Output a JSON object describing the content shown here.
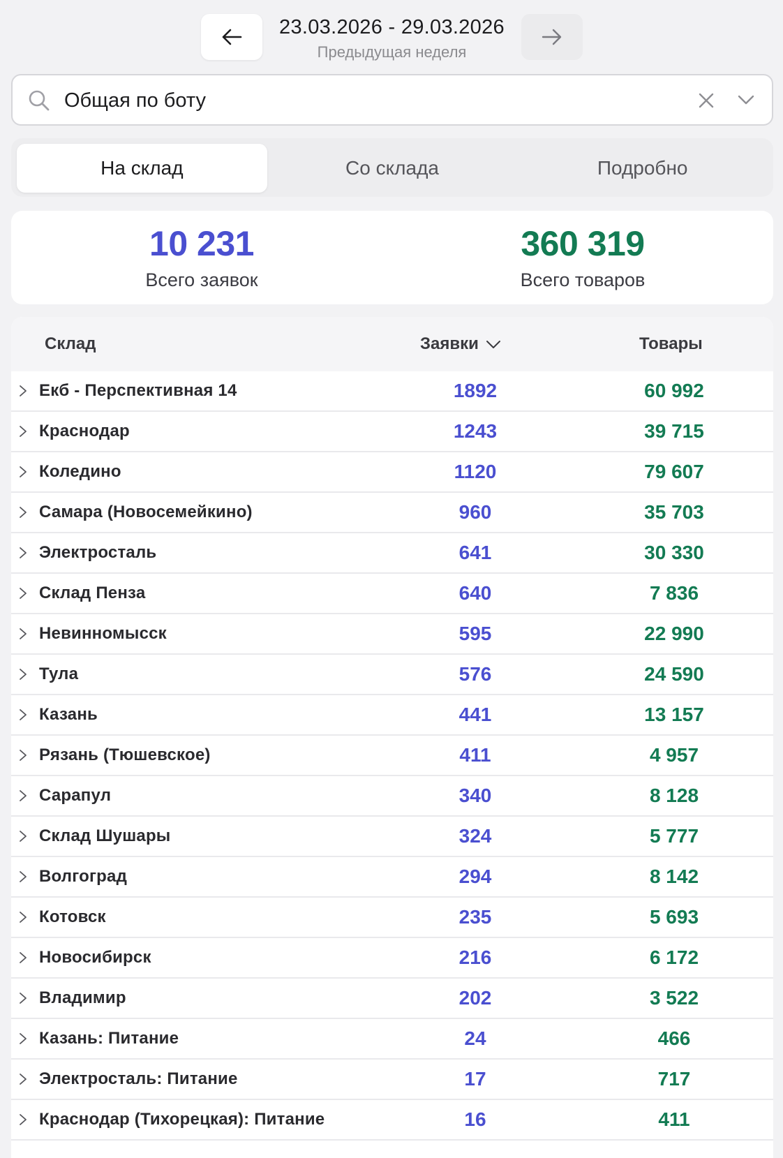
{
  "week": {
    "range": "23.03.2026 - 29.03.2026",
    "subtitle": "Предыдущая неделя"
  },
  "search": {
    "value": "Общая по боту"
  },
  "tabs": [
    {
      "label": "На склад",
      "active": true
    },
    {
      "label": "Со склада",
      "active": false
    },
    {
      "label": "Подробно",
      "active": false
    }
  ],
  "totals": {
    "requests_value": "10 231",
    "requests_label": "Всего заявок",
    "goods_value": "360 319",
    "goods_label": "Всего товаров"
  },
  "table": {
    "headers": {
      "warehouse": "Склад",
      "requests": "Заявки",
      "goods": "Товары"
    },
    "rows": [
      {
        "name": "Екб - Перспективная 14",
        "requests": "1892",
        "goods": "60 992"
      },
      {
        "name": "Краснодар",
        "requests": "1243",
        "goods": "39 715"
      },
      {
        "name": "Коледино",
        "requests": "1120",
        "goods": "79 607"
      },
      {
        "name": "Самара (Новосемейкино)",
        "requests": "960",
        "goods": "35 703"
      },
      {
        "name": "Электросталь",
        "requests": "641",
        "goods": "30 330"
      },
      {
        "name": "Склад Пенза",
        "requests": "640",
        "goods": "7 836"
      },
      {
        "name": "Невинномысск",
        "requests": "595",
        "goods": "22 990"
      },
      {
        "name": "Тула",
        "requests": "576",
        "goods": "24 590"
      },
      {
        "name": "Казань",
        "requests": "441",
        "goods": "13 157"
      },
      {
        "name": "Рязань (Тюшевское)",
        "requests": "411",
        "goods": "4 957"
      },
      {
        "name": "Сарапул",
        "requests": "340",
        "goods": "8 128"
      },
      {
        "name": "Склад Шушары",
        "requests": "324",
        "goods": "5 777"
      },
      {
        "name": "Волгоград",
        "requests": "294",
        "goods": "8 142"
      },
      {
        "name": "Котовск",
        "requests": "235",
        "goods": "5 693"
      },
      {
        "name": "Новосибирск",
        "requests": "216",
        "goods": "6 172"
      },
      {
        "name": "Владимир",
        "requests": "202",
        "goods": "3 522"
      },
      {
        "name": "Казань: Питание",
        "requests": "24",
        "goods": "466"
      },
      {
        "name": "Электросталь: Питание",
        "requests": "17",
        "goods": "717"
      },
      {
        "name": "Краснодар (Тихорецкая): Питание",
        "requests": "16",
        "goods": "411"
      }
    ]
  },
  "colors": {
    "requests_accent": "#4a4fd0",
    "goods_accent": "#137b53"
  }
}
